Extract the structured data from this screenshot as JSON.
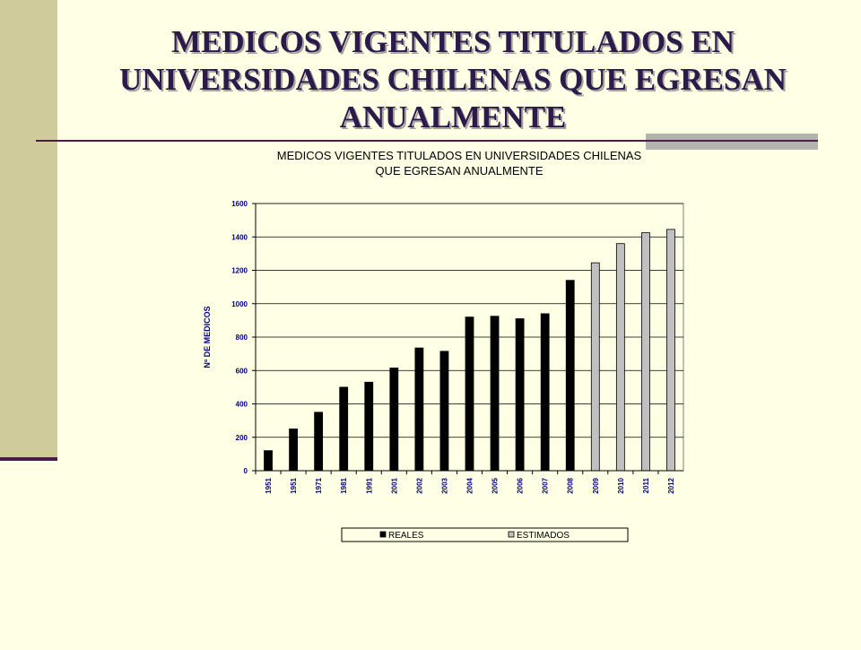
{
  "slide": {
    "title": "MEDICOS VIGENTES TITULADOS EN UNIVERSIDADES CHILENAS QUE EGRESAN ANUALMENTE"
  },
  "colors": {
    "background": "#FFFFE6",
    "band": "#CFCB9A",
    "accent_rule": "#4B1E45",
    "title": "#2B1A4A",
    "reales": "#000000",
    "estimados": "#C0C0C0"
  },
  "chart_data": {
    "type": "bar",
    "title": "MEDICOS VIGENTES TITULADOS EN UNIVERSIDADES CHILENAS QUE EGRESAN ANUALMENTE",
    "title_lines": [
      "MEDICOS VIGENTES TITULADOS EN UNIVERSIDADES CHILENAS",
      "QUE EGRESAN ANUALMENTE"
    ],
    "xlabel": "",
    "ylabel": "Nº DE MEDICOS",
    "ylim": [
      0,
      1600
    ],
    "yticks": [
      0,
      200,
      400,
      600,
      800,
      1000,
      1200,
      1400,
      1600
    ],
    "grid": true,
    "legend_position": "bottom",
    "categories": [
      "1951",
      "1951",
      "1971",
      "1981",
      "1991",
      "2001",
      "2002",
      "2003",
      "2004",
      "2005",
      "2006",
      "2007",
      "2008",
      "2009",
      "2010",
      "2011",
      "2012"
    ],
    "series": [
      {
        "name": "REALES",
        "color": "#000000",
        "values": [
          120,
          250,
          350,
          500,
          530,
          615,
          735,
          715,
          920,
          925,
          910,
          940,
          1140,
          null,
          null,
          null,
          null
        ]
      },
      {
        "name": "ESTIMADOS",
        "color": "#C0C0C0",
        "values": [
          null,
          null,
          null,
          null,
          null,
          null,
          null,
          null,
          null,
          null,
          null,
          null,
          null,
          1245,
          1360,
          1425,
          1445
        ]
      }
    ]
  }
}
